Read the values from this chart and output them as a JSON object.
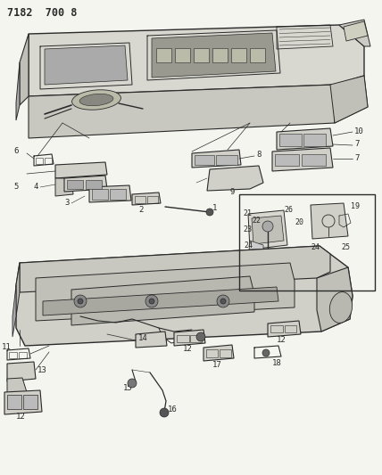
{
  "title_code": "7182  700 8",
  "bg_color": "#f5f5f0",
  "line_color": "#2a2a2a",
  "fig_width": 4.28,
  "fig_height": 5.33,
  "dpi": 100,
  "label_fontsize": 6.5,
  "title_fontsize": 8.5
}
